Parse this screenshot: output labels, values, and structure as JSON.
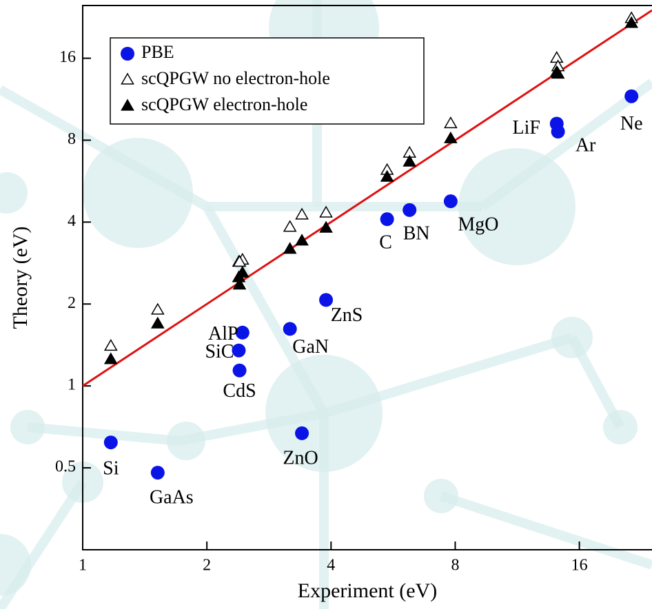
{
  "chart_data": {
    "type": "scatter",
    "x_label": "Experiment (eV)",
    "y_label": "Theory (eV)",
    "x_scale": "log",
    "y_scale": "log",
    "xlim": [
      1,
      24
    ],
    "ylim": [
      0.25,
      25
    ],
    "xticks": [
      1,
      2,
      4,
      8,
      16
    ],
    "yticks": [
      0.5,
      1,
      2,
      4,
      8,
      16
    ],
    "legend": "upper left",
    "reference_line": {
      "color": "#e01010"
    },
    "series": [
      {
        "name": "PBE",
        "color": "#0a14e6",
        "marker": "circle",
        "labels": [
          "Si",
          "GaAs",
          "AlP",
          "SiC",
          "CdS",
          "GaN",
          "ZnO",
          "ZnS",
          "C",
          "BN",
          "MgO",
          "LiF",
          "Ar",
          "Ne"
        ],
        "x": [
          1.17,
          1.52,
          2.44,
          2.39,
          2.4,
          3.18,
          3.4,
          3.89,
          5.47,
          6.2,
          7.8,
          14.1,
          14.2,
          21.4
        ],
        "values": [
          0.62,
          0.48,
          1.57,
          1.35,
          1.14,
          1.62,
          0.67,
          2.07,
          4.1,
          4.43,
          4.77,
          9.2,
          8.6,
          11.6
        ]
      },
      {
        "name": "scQPGW no electron-hole",
        "color": "#000000",
        "marker": "open-triangle",
        "x": [
          1.17,
          1.52,
          2.44,
          2.39,
          2.4,
          3.18,
          3.4,
          3.89,
          5.47,
          6.2,
          7.8,
          14.1,
          14.2,
          21.4
        ],
        "values": [
          1.4,
          1.9,
          2.9,
          2.85,
          2.85,
          3.83,
          4.25,
          4.32,
          6.2,
          7.17,
          9.2,
          16,
          14.9,
          22.4
        ]
      },
      {
        "name": "scQPGW electron-hole",
        "color": "#000000",
        "marker": "filled-triangle",
        "x": [
          1.17,
          1.52,
          2.44,
          2.39,
          2.4,
          3.18,
          3.4,
          3.89,
          5.47,
          6.2,
          7.8,
          14.1,
          14.2,
          21.4
        ],
        "values": [
          1.25,
          1.69,
          2.6,
          2.5,
          2.35,
          3.18,
          3.41,
          3.8,
          5.85,
          6.65,
          8.1,
          14.2,
          14.0,
          21.5
        ]
      }
    ]
  }
}
